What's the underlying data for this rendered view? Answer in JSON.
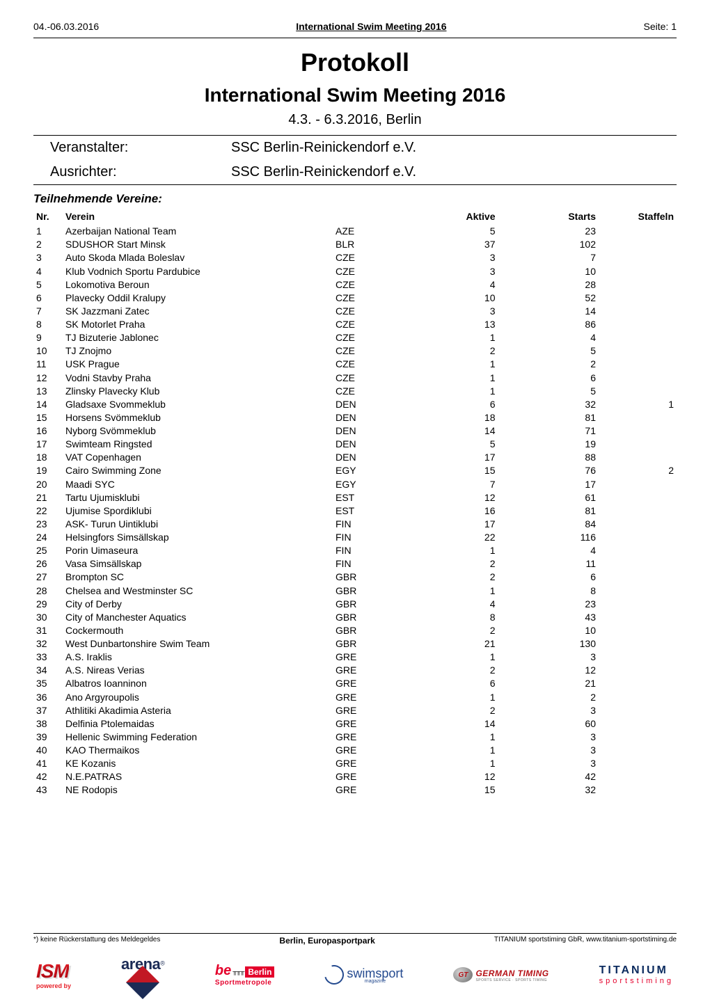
{
  "header": {
    "date": "04.-06.03.2016",
    "meeting": "International Swim Meeting 2016",
    "page_label": "Seite: 1"
  },
  "titles": {
    "main": "Protokoll",
    "sub": "International Swim Meeting 2016",
    "daterange": "4.3. - 6.3.2016, Berlin"
  },
  "org": {
    "veranstalter_label": "Veranstalter:",
    "veranstalter_value": "SSC Berlin-Reinickendorf e.V.",
    "ausrichter_label": "Ausrichter:",
    "ausrichter_value": "SSC Berlin-Reinickendorf e.V."
  },
  "section": {
    "participating": "Teilnehmende Vereine:"
  },
  "columns": {
    "nr": "Nr.",
    "verein": "Verein",
    "aktive": "Aktive",
    "starts": "Starts",
    "staffeln": "Staffeln"
  },
  "rows": [
    {
      "nr": "1",
      "verein": "Azerbaijan National Team",
      "nat": "AZE",
      "aktive": "5",
      "starts": "23",
      "staffeln": ""
    },
    {
      "nr": "2",
      "verein": "SDUSHOR Start Minsk",
      "nat": "BLR",
      "aktive": "37",
      "starts": "102",
      "staffeln": ""
    },
    {
      "nr": "3",
      "verein": "Auto Skoda Mlada Boleslav",
      "nat": "CZE",
      "aktive": "3",
      "starts": "7",
      "staffeln": ""
    },
    {
      "nr": "4",
      "verein": "Klub Vodnich Sportu Pardubice",
      "nat": "CZE",
      "aktive": "3",
      "starts": "10",
      "staffeln": ""
    },
    {
      "nr": "5",
      "verein": "Lokomotiva Beroun",
      "nat": "CZE",
      "aktive": "4",
      "starts": "28",
      "staffeln": ""
    },
    {
      "nr": "6",
      "verein": "Plavecky Oddil Kralupy",
      "nat": "CZE",
      "aktive": "10",
      "starts": "52",
      "staffeln": ""
    },
    {
      "nr": "7",
      "verein": "SK Jazzmani Zatec",
      "nat": "CZE",
      "aktive": "3",
      "starts": "14",
      "staffeln": ""
    },
    {
      "nr": "8",
      "verein": "SK Motorlet Praha",
      "nat": "CZE",
      "aktive": "13",
      "starts": "86",
      "staffeln": ""
    },
    {
      "nr": "9",
      "verein": "TJ Bizuterie Jablonec",
      "nat": "CZE",
      "aktive": "1",
      "starts": "4",
      "staffeln": ""
    },
    {
      "nr": "10",
      "verein": "TJ Znojmo",
      "nat": "CZE",
      "aktive": "2",
      "starts": "5",
      "staffeln": ""
    },
    {
      "nr": "11",
      "verein": "USK Prague",
      "nat": "CZE",
      "aktive": "1",
      "starts": "2",
      "staffeln": ""
    },
    {
      "nr": "12",
      "verein": "Vodni Stavby Praha",
      "nat": "CZE",
      "aktive": "1",
      "starts": "6",
      "staffeln": ""
    },
    {
      "nr": "13",
      "verein": "Zlinsky Plavecky Klub",
      "nat": "CZE",
      "aktive": "1",
      "starts": "5",
      "staffeln": ""
    },
    {
      "nr": "14",
      "verein": "Gladsaxe Svommeklub",
      "nat": "DEN",
      "aktive": "6",
      "starts": "32",
      "staffeln": "1"
    },
    {
      "nr": "15",
      "verein": "Horsens Svömmeklub",
      "nat": "DEN",
      "aktive": "18",
      "starts": "81",
      "staffeln": ""
    },
    {
      "nr": "16",
      "verein": "Nyborg Svömmeklub",
      "nat": "DEN",
      "aktive": "14",
      "starts": "71",
      "staffeln": ""
    },
    {
      "nr": "17",
      "verein": "Swimteam Ringsted",
      "nat": "DEN",
      "aktive": "5",
      "starts": "19",
      "staffeln": ""
    },
    {
      "nr": "18",
      "verein": "VAT Copenhagen",
      "nat": "DEN",
      "aktive": "17",
      "starts": "88",
      "staffeln": ""
    },
    {
      "nr": "19",
      "verein": "Cairo Swimming Zone",
      "nat": "EGY",
      "aktive": "15",
      "starts": "76",
      "staffeln": "2"
    },
    {
      "nr": "20",
      "verein": "Maadi SYC",
      "nat": "EGY",
      "aktive": "7",
      "starts": "17",
      "staffeln": ""
    },
    {
      "nr": "21",
      "verein": "Tartu Ujumisklubi",
      "nat": "EST",
      "aktive": "12",
      "starts": "61",
      "staffeln": ""
    },
    {
      "nr": "22",
      "verein": "Ujumise Spordiklubi",
      "nat": "EST",
      "aktive": "16",
      "starts": "81",
      "staffeln": ""
    },
    {
      "nr": "23",
      "verein": "ASK- Turun Uintiklubi",
      "nat": "FIN",
      "aktive": "17",
      "starts": "84",
      "staffeln": ""
    },
    {
      "nr": "24",
      "verein": "Helsingfors Simsällskap",
      "nat": "FIN",
      "aktive": "22",
      "starts": "116",
      "staffeln": ""
    },
    {
      "nr": "25",
      "verein": "Porin Uimaseura",
      "nat": "FIN",
      "aktive": "1",
      "starts": "4",
      "staffeln": ""
    },
    {
      "nr": "26",
      "verein": "Vasa Simsällskap",
      "nat": "FIN",
      "aktive": "2",
      "starts": "11",
      "staffeln": ""
    },
    {
      "nr": "27",
      "verein": "Brompton SC",
      "nat": "GBR",
      "aktive": "2",
      "starts": "6",
      "staffeln": ""
    },
    {
      "nr": "28",
      "verein": "Chelsea and Westminster SC",
      "nat": "GBR",
      "aktive": "1",
      "starts": "8",
      "staffeln": ""
    },
    {
      "nr": "29",
      "verein": "City of Derby",
      "nat": "GBR",
      "aktive": "4",
      "starts": "23",
      "staffeln": ""
    },
    {
      "nr": "30",
      "verein": "City of Manchester Aquatics",
      "nat": "GBR",
      "aktive": "8",
      "starts": "43",
      "staffeln": ""
    },
    {
      "nr": "31",
      "verein": "Cockermouth",
      "nat": "GBR",
      "aktive": "2",
      "starts": "10",
      "staffeln": ""
    },
    {
      "nr": "32",
      "verein": "West Dunbartonshire Swim Team",
      "nat": "GBR",
      "aktive": "21",
      "starts": "130",
      "staffeln": ""
    },
    {
      "nr": "33",
      "verein": "A.S. Iraklis",
      "nat": "GRE",
      "aktive": "1",
      "starts": "3",
      "staffeln": ""
    },
    {
      "nr": "34",
      "verein": "A.S. Nireas Verias",
      "nat": "GRE",
      "aktive": "2",
      "starts": "12",
      "staffeln": ""
    },
    {
      "nr": "35",
      "verein": "Albatros Ioanninon",
      "nat": "GRE",
      "aktive": "6",
      "starts": "21",
      "staffeln": ""
    },
    {
      "nr": "36",
      "verein": "Ano Argyroupolis",
      "nat": "GRE",
      "aktive": "1",
      "starts": "2",
      "staffeln": ""
    },
    {
      "nr": "37",
      "verein": "Athlitiki Akadimia Asteria",
      "nat": "GRE",
      "aktive": "2",
      "starts": "3",
      "staffeln": ""
    },
    {
      "nr": "38",
      "verein": "Delfinia Ptolemaidas",
      "nat": "GRE",
      "aktive": "14",
      "starts": "60",
      "staffeln": ""
    },
    {
      "nr": "39",
      "verein": "Hellenic Swimming Federation",
      "nat": "GRE",
      "aktive": "1",
      "starts": "3",
      "staffeln": ""
    },
    {
      "nr": "40",
      "verein": "KAO Thermaikos",
      "nat": "GRE",
      "aktive": "1",
      "starts": "3",
      "staffeln": ""
    },
    {
      "nr": "41",
      "verein": "KE Kozanis",
      "nat": "GRE",
      "aktive": "1",
      "starts": "3",
      "staffeln": ""
    },
    {
      "nr": "42",
      "verein": "N.E.PATRAS",
      "nat": "GRE",
      "aktive": "12",
      "starts": "42",
      "staffeln": ""
    },
    {
      "nr": "43",
      "verein": "NE Rodopis",
      "nat": "GRE",
      "aktive": "15",
      "starts": "32",
      "staffeln": ""
    }
  ],
  "footer": {
    "left": "*) keine Rückerstattung des Meldegeldes",
    "mid": "Berlin, Europasportpark",
    "right": "TITANIUM sportstiming GbR, www.titanium-sportstiming.de"
  },
  "logos": {
    "ism_text": "ISM",
    "ism_sub": "powered by",
    "arena_text": "arena",
    "arena_reg": "®",
    "berlin_be": "be",
    "berlin_box": "Berlin",
    "berlin_sub": "Sportmetropole",
    "swimsport_text": "swimsport",
    "swimsport_sub": "magazine",
    "german_badge": "GT",
    "german_text": "GERMAN TIMING",
    "german_sub": "SPORTS SERVICE · SPORTS TIMING",
    "titanium_top": "TITANIUM",
    "titanium_sub": "sportstiming"
  }
}
